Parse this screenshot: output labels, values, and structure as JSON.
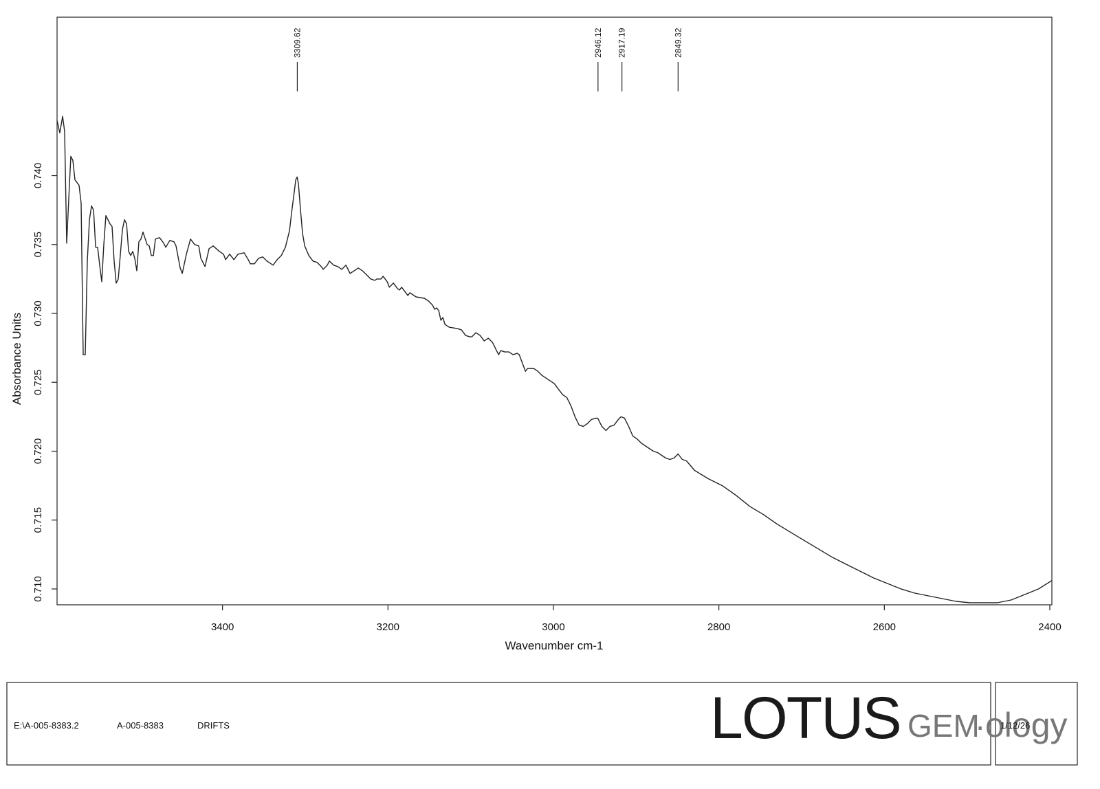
{
  "chart_data": {
    "type": "line",
    "xlabel": "Wavenumber cm-1",
    "ylabel": "Absorbance Units",
    "xlim": [
      3600,
      2397.5
    ],
    "ylim": [
      0.70885,
      0.7515
    ],
    "xticks": [
      3400,
      3200,
      3000,
      2800,
      2600,
      2400
    ],
    "yticks": [
      {
        "value": 0.71,
        "label": "0.710"
      },
      0.715,
      {
        "value": 0.72,
        "label": "0.720"
      },
      0.725,
      {
        "value": 0.73,
        "label": "0.730"
      },
      0.735,
      {
        "value": 0.74,
        "label": "0.740"
      }
    ],
    "grid": false,
    "color": "#222222",
    "peaks": [
      3309.62,
      2946.12,
      2917.19,
      2849.32
    ],
    "x": [
      3600,
      3596.7,
      3593.3,
      3590.9,
      3588.4,
      3585.9,
      3583.4,
      3580.9,
      3578.4,
      3573.4,
      3570.9,
      3568.4,
      3565.9,
      3563.4,
      3560.9,
      3558.4,
      3555.9,
      3553.4,
      3551.0,
      3548.5,
      3546.0,
      3543.5,
      3541.0,
      3536.0,
      3533.5,
      3531.0,
      3528.5,
      3526.0,
      3523.5,
      3521.0,
      3518.5,
      3516.0,
      3513.5,
      3511.0,
      3508.5,
      3506.1,
      3503.6,
      3501.1,
      3498.6,
      3496.1,
      3491.1,
      3488.6,
      3486.1,
      3483.6,
      3481.1,
      3476.1,
      3471.1,
      3468.6,
      3463.7,
      3458.7,
      3456.2,
      3451.2,
      3448.7,
      3443.7,
      3438.7,
      3433.7,
      3428.7,
      3426.2,
      3421.2,
      3416.3,
      3411.3,
      3403.8,
      3398.8,
      3396.3,
      3391.3,
      3386.3,
      3381.3,
      3373.9,
      3368.9,
      3366.4,
      3361.4,
      3356.4,
      3351.4,
      3346.4,
      3341.4,
      3338.9,
      3333.9,
      3328.9,
      3324.0,
      3319.0,
      3316.5,
      3314.0,
      3311.5,
      3309.8,
      3308.2,
      3305.7,
      3303.2,
      3300.7,
      3295.7,
      3290.7,
      3285.7,
      3280.7,
      3278.2,
      3273.3,
      3270.8,
      3265.8,
      3260.8,
      3255.8,
      3250.8,
      3245.8,
      3240.8,
      3235.9,
      3230.9,
      3225.9,
      3220.9,
      3215.9,
      3213.4,
      3208.4,
      3205.9,
      3200.9,
      3198.4,
      3193.5,
      3188.5,
      3186.0,
      3183.5,
      3178.5,
      3176.0,
      3173.5,
      3166.0,
      3156.0,
      3151.0,
      3146.1,
      3143.6,
      3141.1,
      3138.6,
      3136.1,
      3133.6,
      3131.1,
      3126.1,
      3116.1,
      3111.1,
      3106.2,
      3101.2,
      3098.7,
      3093.7,
      3088.7,
      3083.7,
      3078.7,
      3073.7,
      3068.8,
      3066.2,
      3063.7,
      3058.8,
      3053.8,
      3048.8,
      3043.8,
      3041.3,
      3036.3,
      3033.8,
      3031.3,
      3023.8,
      3018.9,
      3013.9,
      3008.9,
      3003.9,
      2998.9,
      2993.9,
      2988.9,
      2983.9,
      2978.9,
      2973.9,
      2969.0,
      2964.0,
      2959.0,
      2954.0,
      2949.0,
      2946.5,
      2941.5,
      2936.5,
      2931.6,
      2926.6,
      2921.6,
      2918.3,
      2914.1,
      2909.1,
      2904.1,
      2899.1,
      2894.1,
      2889.2,
      2884.2,
      2879.2,
      2874.2,
      2869.2,
      2864.2,
      2859.2,
      2854.2,
      2849.3,
      2844.3,
      2839.3,
      2829.3,
      2812.7,
      2796.0,
      2779.4,
      2762.8,
      2746.1,
      2729.5,
      2712.9,
      2696.3,
      2679.6,
      2663.0,
      2646.4,
      2629.7,
      2613.1,
      2596.5,
      2579.8,
      2563.2,
      2546.6,
      2530.0,
      2513.3,
      2496.7,
      2480.0,
      2463.4,
      2446.8,
      2430.2,
      2413.6,
      2397.8
    ],
    "values": [
      0.744,
      0.7431,
      0.7443,
      0.7432,
      0.7351,
      0.7383,
      0.7414,
      0.7411,
      0.7397,
      0.7393,
      0.738,
      0.727,
      0.727,
      0.7338,
      0.7368,
      0.7378,
      0.7375,
      0.7348,
      0.7348,
      0.7335,
      0.7323,
      0.735,
      0.7371,
      0.7365,
      0.7363,
      0.7338,
      0.7322,
      0.7325,
      0.7343,
      0.7361,
      0.7368,
      0.7365,
      0.7345,
      0.7342,
      0.7345,
      0.734,
      0.7331,
      0.7352,
      0.7354,
      0.7359,
      0.735,
      0.7349,
      0.7342,
      0.7342,
      0.7354,
      0.7355,
      0.7351,
      0.7348,
      0.7353,
      0.7352,
      0.7349,
      0.7333,
      0.7329,
      0.7343,
      0.7354,
      0.735,
      0.7349,
      0.734,
      0.7334,
      0.7347,
      0.7349,
      0.7345,
      0.7343,
      0.7339,
      0.7343,
      0.7339,
      0.7343,
      0.7344,
      0.7339,
      0.7336,
      0.7336,
      0.734,
      0.7341,
      0.7338,
      0.7336,
      0.7335,
      0.7339,
      0.7342,
      0.7348,
      0.736,
      0.7373,
      0.7385,
      0.7397,
      0.7399,
      0.7394,
      0.7375,
      0.7358,
      0.7349,
      0.7342,
      0.7338,
      0.7337,
      0.7334,
      0.7332,
      0.7335,
      0.7338,
      0.7335,
      0.7334,
      0.7332,
      0.7335,
      0.7329,
      0.7331,
      0.7333,
      0.7331,
      0.7328,
      0.7325,
      0.7324,
      0.7325,
      0.7325,
      0.7327,
      0.7323,
      0.7319,
      0.7322,
      0.7318,
      0.7317,
      0.7319,
      0.7315,
      0.7313,
      0.7315,
      0.7312,
      0.7311,
      0.7309,
      0.7306,
      0.7303,
      0.7304,
      0.7302,
      0.7295,
      0.7297,
      0.7292,
      0.729,
      0.7289,
      0.7288,
      0.7284,
      0.7283,
      0.7283,
      0.7286,
      0.7284,
      0.728,
      0.7282,
      0.7279,
      0.7273,
      0.727,
      0.7273,
      0.7272,
      0.7272,
      0.727,
      0.7271,
      0.727,
      0.7262,
      0.7258,
      0.726,
      0.726,
      0.7258,
      0.7255,
      0.7253,
      0.7251,
      0.7249,
      0.7245,
      0.7241,
      0.7239,
      0.7233,
      0.7225,
      0.7219,
      0.7218,
      0.722,
      0.7223,
      0.7224,
      0.7224,
      0.7218,
      0.7215,
      0.7218,
      0.7219,
      0.7223,
      0.7225,
      0.7224,
      0.7218,
      0.7211,
      0.7209,
      0.7206,
      0.7204,
      0.7202,
      0.72,
      0.7199,
      0.7197,
      0.7195,
      0.7194,
      0.7195,
      0.7198,
      0.7194,
      0.7193,
      0.7186,
      0.718,
      0.7175,
      0.7168,
      0.716,
      0.7154,
      0.7147,
      0.7141,
      0.7135,
      0.7129,
      0.7123,
      0.7118,
      0.7113,
      0.7108,
      0.7104,
      0.71,
      0.7097,
      0.7095,
      0.7093,
      0.7091,
      0.709,
      0.709,
      0.709,
      0.7092,
      0.7096,
      0.71,
      0.7106
    ]
  },
  "footer": {
    "file": "E:\\A-005-8383.2",
    "sample": "A-005-8383",
    "method": "DRIFTS",
    "logo_main": "LOTUS",
    "logo_gem": "GEM",
    "logo_dot": "·",
    "logo_tail": "ology",
    "date": "1/12/26"
  }
}
